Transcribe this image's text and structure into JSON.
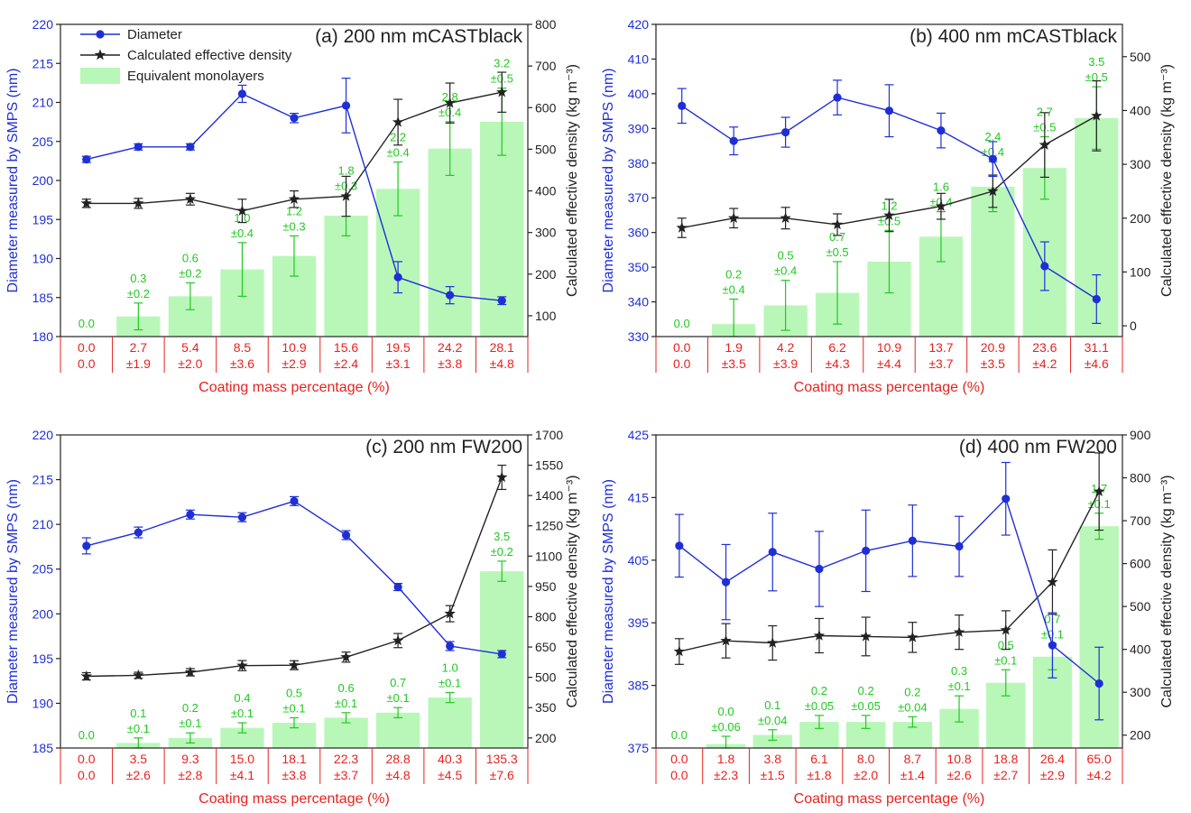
{
  "colors": {
    "diameter": "#1f2fd6",
    "density": "#222222",
    "monolayer_fill": "#b9f7b9",
    "monolayer_text": "#22c822",
    "coating_text": "#e8221f",
    "axis": "#222222"
  },
  "legend": {
    "diameter": "Diameter",
    "density": "Calculated effective density",
    "monolayers": "Equivalent monolayers"
  },
  "chart_data": [
    {
      "type": "line",
      "title": "(a) 200 nm mCASTblack",
      "xlabel": "Coating mass percentage (%)",
      "ylabel": "Diameter measured by SMPS (nm)",
      "y2label": "Calculated effective density (kg m⁻³)",
      "ylim": [
        180,
        220
      ],
      "yticks": [
        180,
        185,
        190,
        195,
        200,
        205,
        210,
        215,
        220
      ],
      "y2lim": [
        50,
        800
      ],
      "y2ticks": [
        100,
        200,
        300,
        400,
        500,
        600,
        700,
        800
      ],
      "bar_min": 0,
      "bar_max": 4.65,
      "categories": [
        "0.0",
        "2.7",
        "5.4",
        "8.5",
        "10.9",
        "15.6",
        "19.5",
        "24.2",
        "28.1"
      ],
      "coating_mean": [
        "0.0",
        "2.7",
        "5.4",
        "8.5",
        "10.9",
        "15.6",
        "19.5",
        "24.2",
        "28.1"
      ],
      "coating_err": [
        "0.0",
        "±1.9",
        "±2.0",
        "±3.6",
        "±2.9",
        "±2.4",
        "±3.1",
        "±3.8",
        "±4.8"
      ],
      "diameter": [
        202.7,
        204.3,
        204.3,
        211.1,
        208.0,
        209.6,
        187.6,
        185.3,
        184.6
      ],
      "diameter_err": [
        0.4,
        0.4,
        0.4,
        1.1,
        0.6,
        3.5,
        2.0,
        1.1,
        0.5
      ],
      "density": [
        370,
        370,
        380,
        352,
        380,
        387,
        565,
        611,
        637
      ],
      "density_err": [
        10,
        12,
        14,
        28,
        20,
        48,
        55,
        48,
        48
      ],
      "monolayers": [
        0.0,
        0.3,
        0.6,
        1.0,
        1.2,
        1.8,
        2.2,
        2.8,
        3.2
      ],
      "monolayers_err": [
        0.0,
        0.2,
        0.2,
        0.4,
        0.3,
        0.3,
        0.4,
        0.4,
        0.5
      ],
      "monolayer_labels": [
        "0.0",
        "0.3",
        "0.6",
        "1.0",
        "1.2",
        "1.8",
        "2.2",
        "2.8",
        "3.2"
      ],
      "monolayer_err_labels": [
        "",
        "±0.2",
        "±0.2",
        "±0.4",
        "±0.3",
        "±0.3",
        "±0.4",
        "±0.4",
        "±0.5"
      ],
      "legend": true
    },
    {
      "type": "line",
      "title": "(b) 400 nm mCASTblack",
      "xlabel": "Coating mass percentage (%)",
      "ylabel": "Diameter measured by SMPS (nm)",
      "y2label": "Calculated effective density (kg m⁻³)",
      "ylim": [
        330,
        420
      ],
      "yticks": [
        330,
        340,
        350,
        360,
        370,
        380,
        390,
        400,
        410,
        420
      ],
      "y2lim": [
        -20,
        560
      ],
      "y2ticks": [
        0,
        100,
        200,
        300,
        400,
        500
      ],
      "bar_min": 0,
      "bar_max": 5.0,
      "categories": [
        "0.0",
        "1.9",
        "4.2",
        "6.2",
        "10.9",
        "13.7",
        "20.9",
        "23.6",
        "31.1"
      ],
      "coating_mean": [
        "0.0",
        "1.9",
        "4.2",
        "6.2",
        "10.9",
        "13.7",
        "20.9",
        "23.6",
        "31.1"
      ],
      "coating_err": [
        "0.0",
        "±3.5",
        "±3.9",
        "±4.3",
        "±4.4",
        "±3.7",
        "±3.5",
        "±4.2",
        "±4.6"
      ],
      "diameter": [
        396.5,
        386.4,
        388.9,
        398.9,
        395.1,
        389.4,
        381.2,
        350.3,
        340.8
      ],
      "diameter_err": [
        5.0,
        4.0,
        4.3,
        5.0,
        7.5,
        5.0,
        5.0,
        7.0,
        7.0
      ],
      "density": [
        182,
        200,
        200,
        188,
        205,
        222,
        250,
        336,
        390
      ],
      "density_err": [
        18,
        18,
        20,
        20,
        30,
        24,
        30,
        60,
        65
      ],
      "monolayers": [
        0.0,
        0.2,
        0.5,
        0.7,
        1.2,
        1.6,
        2.4,
        2.7,
        3.5
      ],
      "monolayers_err": [
        0.0,
        0.4,
        0.4,
        0.5,
        0.5,
        0.4,
        0.4,
        0.5,
        0.5
      ],
      "monolayer_labels": [
        "0.0",
        "0.2",
        "0.5",
        "0.7",
        "1.2",
        "1.6",
        "2.4",
        "2.7",
        "3.5"
      ],
      "monolayer_err_labels": [
        "",
        "±0.4",
        "±0.4",
        "±0.5",
        "±0.5",
        "±0.4",
        "±0.4",
        "±0.5",
        "±0.5"
      ],
      "legend": false
    },
    {
      "type": "line",
      "title": "(c) 200 nm FW200",
      "xlabel": "Coating mass percentage (%)",
      "ylabel": "Diameter measured by SMPS (nm)",
      "y2label": "Calculated effective density (kg m⁻³)",
      "ylim": [
        185,
        220
      ],
      "yticks": [
        185,
        190,
        195,
        200,
        205,
        210,
        215,
        220
      ],
      "y2lim": [
        150,
        1700
      ],
      "y2ticks": [
        200,
        350,
        500,
        650,
        800,
        950,
        1100,
        1250,
        1400,
        1550,
        1700
      ],
      "bar_min": 0,
      "bar_max": 6.2,
      "categories": [
        "0.0",
        "3.5",
        "9.3",
        "15.0",
        "18.1",
        "22.3",
        "28.8",
        "40.3",
        "135.3"
      ],
      "coating_mean": [
        "0.0",
        "3.5",
        "9.3",
        "15.0",
        "18.1",
        "22.3",
        "28.8",
        "40.3",
        "135.3"
      ],
      "coating_err": [
        "0.0",
        "±2.6",
        "±2.8",
        "±4.1",
        "±3.8",
        "±3.7",
        "±4.8",
        "±4.5",
        "±7.6"
      ],
      "diameter": [
        207.6,
        209.1,
        211.1,
        210.8,
        212.6,
        208.8,
        203.0,
        196.4,
        195.5
      ],
      "diameter_err": [
        0.9,
        0.6,
        0.5,
        0.5,
        0.5,
        0.5,
        0.4,
        0.5,
        0.4
      ],
      "density": [
        505,
        510,
        525,
        558,
        560,
        600,
        682,
        815,
        1490
      ],
      "density_err": [
        18,
        15,
        18,
        25,
        22,
        25,
        35,
        40,
        60
      ],
      "monolayers": [
        0.0,
        0.1,
        0.2,
        0.4,
        0.5,
        0.6,
        0.7,
        1.0,
        3.5
      ],
      "monolayers_err": [
        0.0,
        0.1,
        0.1,
        0.1,
        0.1,
        0.1,
        0.1,
        0.1,
        0.2
      ],
      "monolayer_labels": [
        "0.0",
        "0.1",
        "0.2",
        "0.4",
        "0.5",
        "0.6",
        "0.7",
        "1.0",
        "3.5"
      ],
      "monolayer_err_labels": [
        "",
        "±0.1",
        "±0.1",
        "±0.1",
        "±0.1",
        "±0.1",
        "±0.1",
        "±0.1",
        "±0.2"
      ],
      "legend": false
    },
    {
      "type": "line",
      "title": "(d) 400 nm FW200",
      "xlabel": "Coating mass percentage (%)",
      "ylabel": "Diameter measured by SMPS (nm)",
      "y2label": "Calculated effective density (kg m⁻³)",
      "ylim": [
        375,
        425
      ],
      "yticks": [
        375,
        385,
        395,
        405,
        415,
        425
      ],
      "y2lim": [
        170,
        900
      ],
      "y2ticks": [
        200,
        300,
        400,
        500,
        600,
        700,
        800,
        900
      ],
      "bar_min": 0,
      "bar_max": 2.4,
      "categories": [
        "0.0",
        "1.8",
        "3.8",
        "6.1",
        "8.0",
        "8.7",
        "10.8",
        "18.8",
        "26.4",
        "65.0"
      ],
      "coating_mean": [
        "0.0",
        "1.8",
        "3.8",
        "6.1",
        "8.0",
        "8.7",
        "10.8",
        "18.8",
        "26.4",
        "65.0"
      ],
      "coating_err": [
        "0.0",
        "±2.3",
        "±1.5",
        "±1.8",
        "±2.0",
        "±1.4",
        "±2.6",
        "±2.7",
        "±2.9",
        "±4.2"
      ],
      "diameter": [
        407.3,
        401.5,
        406.3,
        403.6,
        406.5,
        408.1,
        407.2,
        414.8,
        391.4,
        385.3
      ],
      "diameter_err": [
        5.0,
        6.0,
        6.2,
        6.0,
        6.5,
        5.7,
        4.8,
        5.8,
        5.2,
        5.8
      ],
      "density": [
        395,
        420,
        415,
        432,
        430,
        428,
        440,
        445,
        557,
        768
      ],
      "density_err": [
        30,
        40,
        40,
        40,
        45,
        35,
        40,
        45,
        75,
        90
      ],
      "monolayers": [
        0.0,
        0.03,
        0.1,
        0.2,
        0.2,
        0.2,
        0.3,
        0.5,
        0.7,
        1.7
      ],
      "monolayers_err": [
        0.0,
        0.06,
        0.04,
        0.05,
        0.05,
        0.04,
        0.1,
        0.1,
        0.1,
        0.1
      ],
      "monolayer_labels": [
        "0.0",
        "0.0",
        "0.1",
        "0.2",
        "0.2",
        "0.2",
        "0.3",
        "0.5",
        "0.7",
        "1.7"
      ],
      "monolayer_err_labels": [
        "",
        "±0.06",
        "±0.04",
        "±0.05",
        "±0.05",
        "±0.04",
        "±0.1",
        "±0.1",
        "±0.1",
        "±0.1"
      ],
      "legend": false
    }
  ]
}
